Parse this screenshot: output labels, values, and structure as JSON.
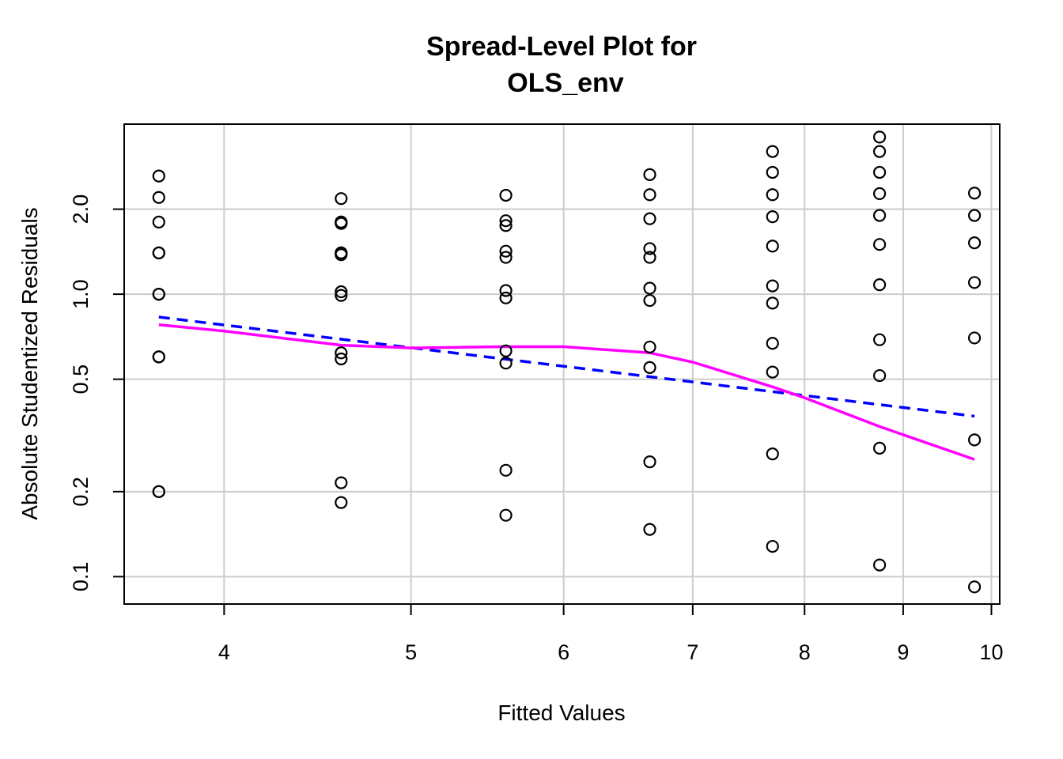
{
  "chart_data": {
    "type": "scatter",
    "title": [
      "Spread-Level Plot for",
      "OLS_env"
    ],
    "xlabel": "Fitted Values",
    "ylabel": "Absolute Studentized Residuals",
    "x_scale": "log",
    "y_scale": "log",
    "xlim": [
      3.55,
      10.1
    ],
    "ylim": [
      0.08,
      4.0
    ],
    "x_ticks": [
      4,
      5,
      6,
      7,
      8,
      9,
      10
    ],
    "x_tick_labels": [
      "4",
      "5",
      "6",
      "7",
      "8",
      "9",
      "10"
    ],
    "y_ticks": [
      0.1,
      0.2,
      0.5,
      1.0,
      2.0
    ],
    "y_tick_labels": [
      "0.1",
      "0.2",
      "0.5",
      "1.0",
      "2.0"
    ],
    "grid": true,
    "colors": {
      "points": "#000000",
      "fit_line": "#0000ff",
      "smooth_line": "#ff00ff",
      "grid": "#cccccc"
    },
    "points": [
      {
        "x": 3.7,
        "y": 2.62
      },
      {
        "x": 3.7,
        "y": 2.2
      },
      {
        "x": 3.7,
        "y": 1.8
      },
      {
        "x": 3.7,
        "y": 1.4
      },
      {
        "x": 3.7,
        "y": 1.4
      },
      {
        "x": 3.7,
        "y": 1.0
      },
      {
        "x": 3.7,
        "y": 1.0
      },
      {
        "x": 3.7,
        "y": 0.6
      },
      {
        "x": 3.7,
        "y": 0.6
      },
      {
        "x": 3.7,
        "y": 0.2
      },
      {
        "x": 3.7,
        "y": 0.2
      },
      {
        "x": 4.6,
        "y": 2.18
      },
      {
        "x": 4.6,
        "y": 1.8
      },
      {
        "x": 4.6,
        "y": 1.8
      },
      {
        "x": 4.6,
        "y": 1.78
      },
      {
        "x": 4.6,
        "y": 1.4
      },
      {
        "x": 4.6,
        "y": 1.4
      },
      {
        "x": 4.6,
        "y": 1.38
      },
      {
        "x": 4.6,
        "y": 1.02
      },
      {
        "x": 4.6,
        "y": 0.99
      },
      {
        "x": 4.6,
        "y": 0.62
      },
      {
        "x": 4.6,
        "y": 0.59
      },
      {
        "x": 4.6,
        "y": 0.215
      },
      {
        "x": 4.6,
        "y": 0.183
      },
      {
        "x": 5.6,
        "y": 2.24
      },
      {
        "x": 5.6,
        "y": 1.82
      },
      {
        "x": 5.6,
        "y": 1.75
      },
      {
        "x": 5.6,
        "y": 1.42
      },
      {
        "x": 5.6,
        "y": 1.35
      },
      {
        "x": 5.6,
        "y": 1.03
      },
      {
        "x": 5.6,
        "y": 0.97
      },
      {
        "x": 5.6,
        "y": 0.63
      },
      {
        "x": 5.6,
        "y": 0.57
      },
      {
        "x": 5.6,
        "y": 0.238
      },
      {
        "x": 5.6,
        "y": 0.165
      },
      {
        "x": 6.65,
        "y": 2.65
      },
      {
        "x": 6.65,
        "y": 2.25
      },
      {
        "x": 6.65,
        "y": 1.85
      },
      {
        "x": 6.65,
        "y": 1.45
      },
      {
        "x": 6.65,
        "y": 1.35
      },
      {
        "x": 6.65,
        "y": 1.05
      },
      {
        "x": 6.65,
        "y": 0.95
      },
      {
        "x": 6.65,
        "y": 0.65
      },
      {
        "x": 6.65,
        "y": 0.55
      },
      {
        "x": 6.65,
        "y": 0.255
      },
      {
        "x": 6.65,
        "y": 0.147
      },
      {
        "x": 7.7,
        "y": 3.2
      },
      {
        "x": 7.7,
        "y": 2.7
      },
      {
        "x": 7.7,
        "y": 2.25
      },
      {
        "x": 7.7,
        "y": 1.88
      },
      {
        "x": 7.7,
        "y": 1.48
      },
      {
        "x": 7.7,
        "y": 1.07
      },
      {
        "x": 7.7,
        "y": 0.93
      },
      {
        "x": 7.7,
        "y": 0.67
      },
      {
        "x": 7.7,
        "y": 0.53
      },
      {
        "x": 7.7,
        "y": 0.272
      },
      {
        "x": 7.7,
        "y": 0.128
      },
      {
        "x": 8.75,
        "y": 3.6
      },
      {
        "x": 8.75,
        "y": 3.2
      },
      {
        "x": 8.75,
        "y": 2.7
      },
      {
        "x": 8.75,
        "y": 2.27
      },
      {
        "x": 8.75,
        "y": 1.9
      },
      {
        "x": 8.75,
        "y": 1.5
      },
      {
        "x": 8.75,
        "y": 1.08
      },
      {
        "x": 8.75,
        "y": 0.69
      },
      {
        "x": 8.75,
        "y": 0.515
      },
      {
        "x": 8.75,
        "y": 0.285
      },
      {
        "x": 8.75,
        "y": 0.11
      },
      {
        "x": 9.8,
        "y": 2.28
      },
      {
        "x": 9.8,
        "y": 1.9
      },
      {
        "x": 9.8,
        "y": 1.52
      },
      {
        "x": 9.8,
        "y": 1.1
      },
      {
        "x": 9.8,
        "y": 0.7
      },
      {
        "x": 9.8,
        "y": 0.305
      },
      {
        "x": 9.8,
        "y": 0.092
      }
    ],
    "fit_line": [
      {
        "x": 3.7,
        "y": 0.83
      },
      {
        "x": 9.8,
        "y": 0.37
      }
    ],
    "smooth_line": [
      {
        "x": 3.7,
        "y": 0.78
      },
      {
        "x": 4.0,
        "y": 0.74
      },
      {
        "x": 4.6,
        "y": 0.66
      },
      {
        "x": 5.0,
        "y": 0.645
      },
      {
        "x": 5.6,
        "y": 0.652
      },
      {
        "x": 6.0,
        "y": 0.652
      },
      {
        "x": 6.65,
        "y": 0.62
      },
      {
        "x": 7.0,
        "y": 0.575
      },
      {
        "x": 7.7,
        "y": 0.47
      },
      {
        "x": 8.0,
        "y": 0.43
      },
      {
        "x": 8.75,
        "y": 0.34
      },
      {
        "x": 9.8,
        "y": 0.26
      }
    ]
  }
}
